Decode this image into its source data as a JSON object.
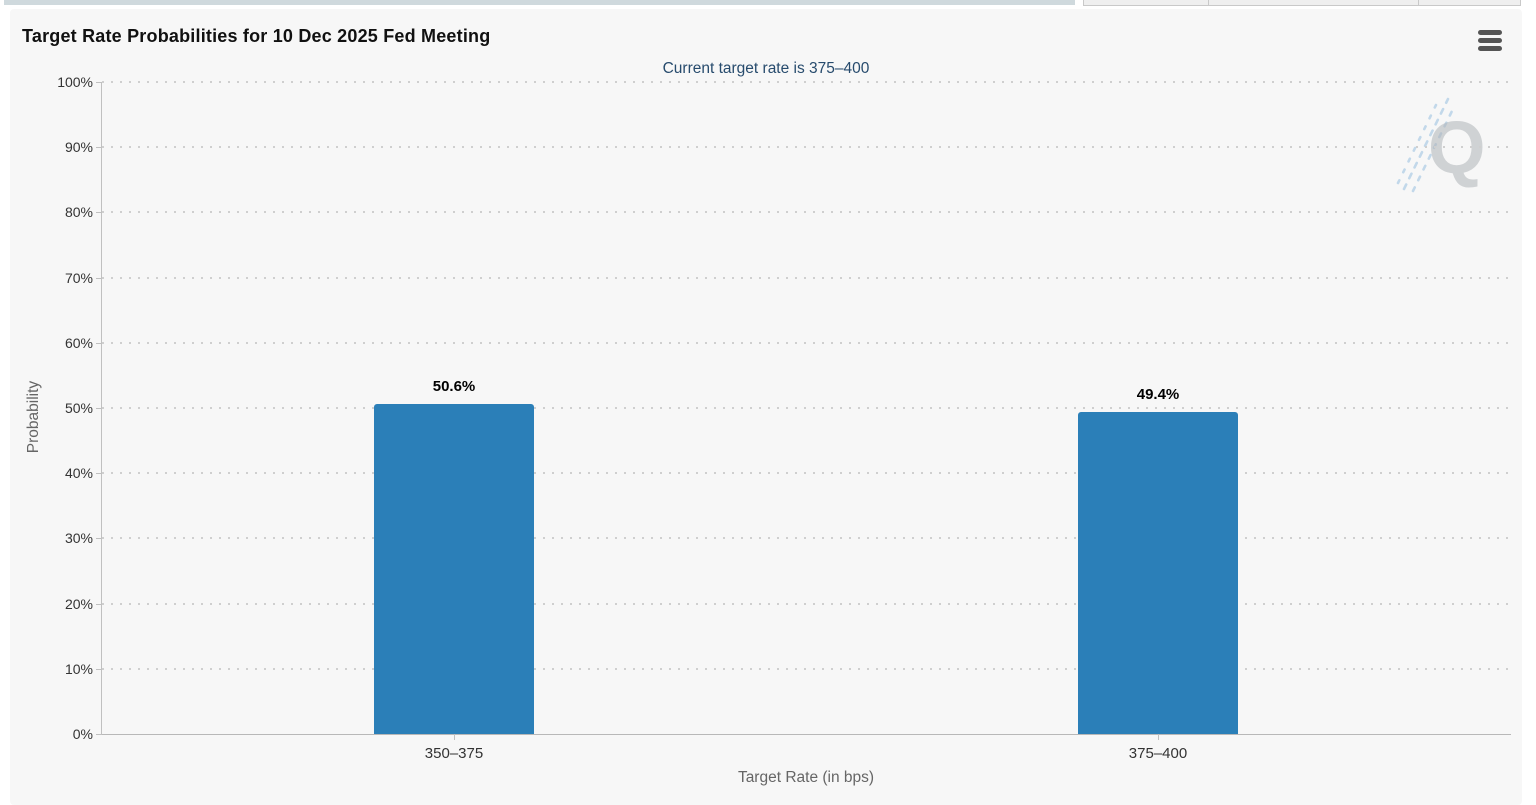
{
  "page": {
    "top_strip": {
      "description": "partially visible tab/button strip cut off at top of viewport",
      "segments": [
        "tab-strip-left",
        "button-stub-1",
        "button-stub-2",
        "button-stub-3"
      ]
    }
  },
  "chart": {
    "title": "Target Rate Probabilities for 10 Dec 2025 Fed Meeting",
    "subtitle": "Current target rate is 375–400",
    "context_menu_icon": "hamburger-menu-icon",
    "watermark_icon": "quikstrike-q-logo"
  },
  "chart_data": {
    "type": "bar",
    "categories": [
      "350–375",
      "375–400"
    ],
    "values": [
      50.6,
      49.4
    ],
    "data_labels": [
      "50.6%",
      "49.4%"
    ],
    "title": "Target Rate Probabilities for 10 Dec 2025 Fed Meeting",
    "subtitle": "Current target rate is 375–400",
    "xlabel": "Target Rate (in bps)",
    "ylabel": "Probability",
    "ylim": [
      0,
      100
    ],
    "ytick_step": 10,
    "ytick_suffix": "%",
    "grid": "horizontal dotted",
    "legend": "none",
    "bar_color": "#2b7fb8"
  },
  "colors": {
    "chart_background": "#f7f7f7",
    "bar": "#2b7fb8",
    "subtitle_text": "#274b6d",
    "axis_title_text": "#666666",
    "tick_label_text": "#333333",
    "gridline": "#cfcfcf",
    "axis_line": "#c0c0c0",
    "menu_icon": "#555555"
  }
}
